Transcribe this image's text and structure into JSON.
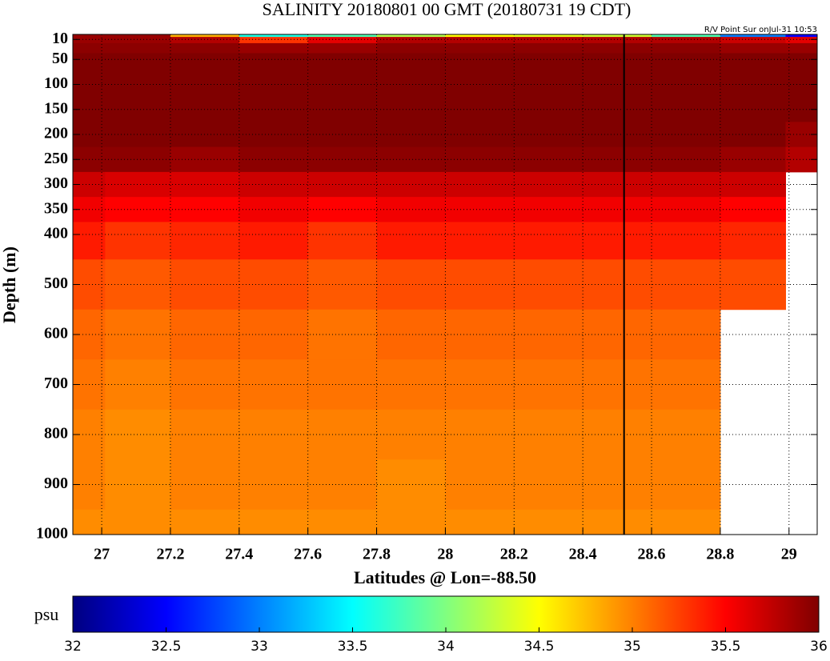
{
  "chart_data": {
    "type": "heatmap",
    "title": "SALINITY 20180801 00 GMT (20180731 19 CDT)",
    "annotation": "R/V Point Sur onJul-31 10:53",
    "xlabel": "Latitudes @ Lon=-88.50",
    "ylabel": "Depth (m)",
    "colorbar_label": "psu",
    "x": [
      26.92,
      27.1,
      27.3,
      27.5,
      27.7,
      27.9,
      28.1,
      28.3,
      28.5,
      28.7,
      28.9,
      29.08
    ],
    "y": [
      0,
      10,
      25,
      50,
      100,
      150,
      200,
      250,
      300,
      350,
      400,
      500,
      600,
      700,
      800,
      900,
      1000
    ],
    "z": [
      [
        35.9,
        35.9,
        34.8,
        33.6,
        33.8,
        34.2,
        34.5,
        34.4,
        34.3,
        33.8,
        33,
        32.5
      ],
      [
        35.9,
        35.9,
        35.8,
        35.3,
        35.6,
        35.8,
        35.8,
        35.8,
        35.8,
        35.8,
        35.7,
        35.6
      ],
      [
        35.95,
        35.95,
        35.95,
        35.9,
        35.9,
        35.95,
        35.95,
        35.95,
        35.95,
        35.95,
        35.9,
        35.9
      ],
      [
        36,
        36,
        36,
        36,
        36,
        36,
        36,
        36,
        36,
        36,
        36,
        36
      ],
      [
        36,
        36,
        36,
        36,
        36,
        36,
        36,
        36,
        36,
        36,
        36,
        36
      ],
      [
        36,
        36,
        36,
        36,
        36,
        36,
        36,
        36,
        36,
        36,
        36,
        36
      ],
      [
        36,
        36,
        36,
        36,
        36,
        36,
        36,
        36,
        36,
        36,
        36,
        35.9
      ],
      [
        35.95,
        35.95,
        35.9,
        35.95,
        35.95,
        35.95,
        35.95,
        35.95,
        35.95,
        35.95,
        35.9,
        35.8
      ],
      [
        35.7,
        35.65,
        35.65,
        35.7,
        35.7,
        35.7,
        35.7,
        35.7,
        35.7,
        35.7,
        35.7,
        null
      ],
      [
        35.55,
        35.5,
        35.5,
        35.55,
        35.5,
        35.55,
        35.55,
        35.55,
        35.55,
        35.55,
        35.5,
        null
      ],
      [
        35.4,
        35.3,
        35.35,
        35.4,
        35.3,
        35.4,
        35.4,
        35.4,
        35.4,
        35.4,
        35.35,
        null
      ],
      [
        35.2,
        35.15,
        35.2,
        35.2,
        35.15,
        35.2,
        35.2,
        35.2,
        35.2,
        35.2,
        35.2,
        null
      ],
      [
        35.1,
        35.05,
        35.1,
        35.1,
        35.05,
        35.1,
        35.1,
        35.1,
        35.1,
        35.1,
        null,
        null
      ],
      [
        35.05,
        35,
        35.05,
        35.05,
        35.05,
        35.05,
        35.05,
        35.05,
        35.05,
        35.05,
        null,
        null
      ],
      [
        35,
        34.95,
        35,
        35,
        35,
        35,
        35,
        35,
        35,
        35,
        null,
        null
      ],
      [
        35,
        34.95,
        35,
        35,
        35,
        34.95,
        35,
        35,
        35,
        35,
        null,
        null
      ],
      [
        34.95,
        34.95,
        34.95,
        34.95,
        34.95,
        34.95,
        34.95,
        34.95,
        34.95,
        34.95,
        null,
        null
      ]
    ],
    "xlim": [
      26.916,
      29.082
    ],
    "ylim": [
      0,
      1000
    ],
    "reverse_y": true,
    "xticks": [
      27,
      27.2,
      27.4,
      27.6,
      27.8,
      28,
      28.2,
      28.4,
      28.6,
      28.8,
      29
    ],
    "yticks": [
      10,
      50,
      100,
      150,
      200,
      250,
      300,
      350,
      400,
      500,
      600,
      700,
      800,
      900,
      1000
    ],
    "vline": 28.52,
    "clim": [
      32,
      36
    ],
    "cticks": [
      32,
      32.5,
      33,
      33.5,
      34,
      34.5,
      35,
      35.5,
      36
    ],
    "colormap": "jet",
    "grid": true
  }
}
